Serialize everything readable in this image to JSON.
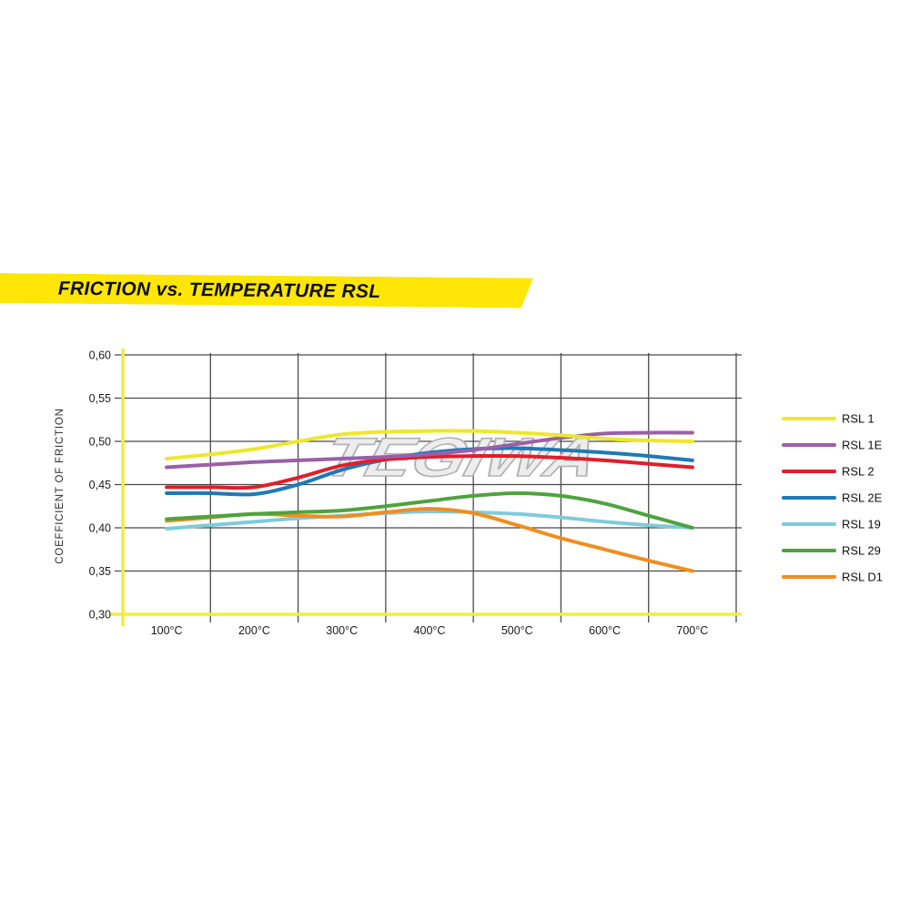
{
  "banner": {
    "title": "FRICTION vs. TEMPERATURE RSL",
    "bg_color": "#FFE606",
    "text_color": "#101010"
  },
  "watermark": "TEGIWA",
  "chart_data": {
    "type": "line",
    "title": "FRICTION vs. TEMPERATURE RSL",
    "xlabel": "",
    "ylabel": "COEFFICIENT OF FRICTION",
    "x_unit": "°C",
    "xlim": [
      50,
      750
    ],
    "ylim": [
      0.3,
      0.6
    ],
    "grid": true,
    "legend_position": "right",
    "x_gridlines": [
      50,
      150,
      250,
      350,
      450,
      550,
      650,
      750
    ],
    "x_ticks": [
      100,
      200,
      300,
      400,
      500,
      600,
      700
    ],
    "x_tick_labels": [
      "100°C",
      "200°C",
      "300°C",
      "400°C",
      "500°C",
      "600°C",
      "700°C"
    ],
    "y_ticks": [
      0.3,
      0.35,
      0.4,
      0.45,
      0.5,
      0.55,
      0.6
    ],
    "y_tick_labels": [
      "0,30",
      "0,35",
      "0,40",
      "0,45",
      "0,50",
      "0,55",
      "0,60"
    ],
    "axis_color": "#F0EE38",
    "grid_color": "#4A4A4A",
    "tick_text_color": "#1B1B1B",
    "x": [
      100,
      150,
      200,
      250,
      300,
      350,
      400,
      450,
      500,
      550,
      600,
      650,
      700
    ],
    "series": [
      {
        "name": "RSL 1",
        "color": "#EDE72E",
        "values": [
          0.48,
          0.485,
          0.491,
          0.5,
          0.508,
          0.511,
          0.512,
          0.512,
          0.51,
          0.507,
          0.503,
          0.501,
          0.5
        ]
      },
      {
        "name": "RSL 1E",
        "color": "#9B5FA7",
        "values": [
          0.47,
          0.473,
          0.476,
          0.478,
          0.48,
          0.482,
          0.485,
          0.49,
          0.497,
          0.504,
          0.509,
          0.51,
          0.51
        ]
      },
      {
        "name": "RSL 2",
        "color": "#E01E2C",
        "values": [
          0.447,
          0.447,
          0.447,
          0.458,
          0.472,
          0.479,
          0.482,
          0.483,
          0.483,
          0.481,
          0.478,
          0.474,
          0.47
        ]
      },
      {
        "name": "RSL 2E",
        "color": "#1F79B5",
        "values": [
          0.44,
          0.44,
          0.439,
          0.45,
          0.467,
          0.479,
          0.487,
          0.491,
          0.492,
          0.49,
          0.487,
          0.483,
          0.478
        ]
      },
      {
        "name": "RSL 19",
        "color": "#7FCBDC",
        "values": [
          0.399,
          0.403,
          0.407,
          0.411,
          0.414,
          0.417,
          0.419,
          0.418,
          0.416,
          0.412,
          0.407,
          0.403,
          0.4
        ]
      },
      {
        "name": "RSL 29",
        "color": "#4EA33E",
        "values": [
          0.41,
          0.413,
          0.416,
          0.418,
          0.42,
          0.425,
          0.431,
          0.437,
          0.44,
          0.437,
          0.428,
          0.414,
          0.4
        ]
      },
      {
        "name": "RSL D1",
        "color": "#F08E1E",
        "values": [
          0.408,
          0.412,
          0.416,
          0.414,
          0.413,
          0.418,
          0.422,
          0.417,
          0.403,
          0.388,
          0.375,
          0.362,
          0.35
        ]
      }
    ],
    "z_order": [
      "RSL 19",
      "RSL D1",
      "RSL 29",
      "RSL 2E",
      "RSL 2",
      "RSL 1E",
      "RSL 1"
    ],
    "watermark_color_fill": "#EDEDED",
    "watermark_color_stroke": "#B2B2B2"
  }
}
